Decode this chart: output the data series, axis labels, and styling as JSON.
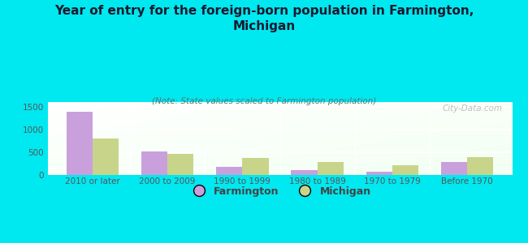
{
  "title": "Year of entry for the foreign-born population in Farmington,\nMichigan",
  "subtitle": "(Note: State values scaled to Farmington population)",
  "categories": [
    "2010 or later",
    "2000 to 2009",
    "1990 to 1999",
    "1980 to 1989",
    "1970 to 1979",
    "Before 1970"
  ],
  "farmington_values": [
    1390,
    510,
    175,
    105,
    75,
    280
  ],
  "michigan_values": [
    800,
    460,
    370,
    285,
    210,
    400
  ],
  "farmington_color": "#c9a0dc",
  "michigan_color": "#c8d48a",
  "background_color": "#00e8f0",
  "ylim": [
    0,
    1600
  ],
  "yticks": [
    0,
    500,
    1000,
    1500
  ],
  "bar_width": 0.35,
  "title_fontsize": 11,
  "subtitle_fontsize": 7.5,
  "tick_fontsize": 7.5,
  "legend_fontsize": 9,
  "watermark": "City-Data.com"
}
